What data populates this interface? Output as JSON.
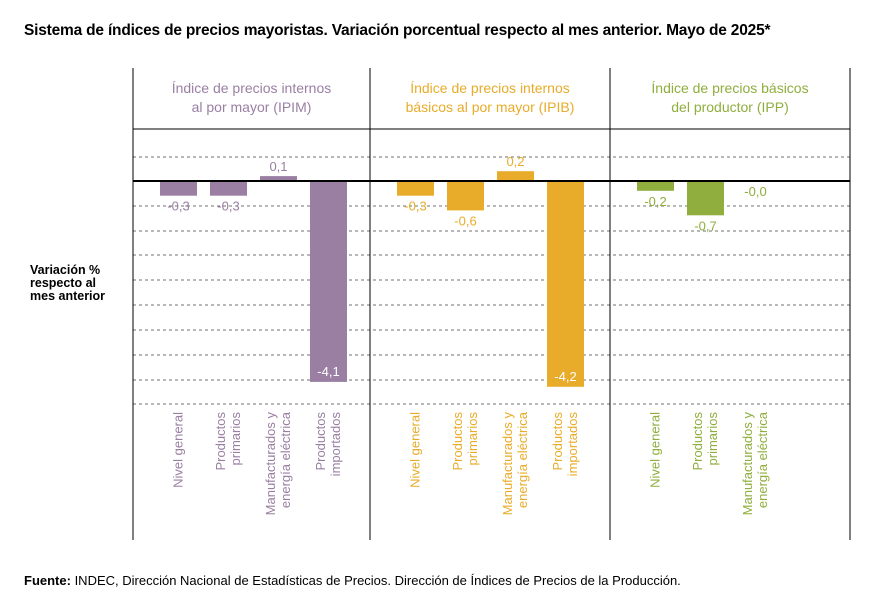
{
  "title": "Sistema de índices de precios mayoristas. Variación porcentual respecto al mes anterior. Mayo de 2025*",
  "ylabel": [
    "Variación %",
    "respecto al",
    "mes anterior"
  ],
  "source": {
    "label": "Fuente:",
    "text": " INDEC, Dirección Nacional de Estadísticas de Precios. Dirección de Índices de Precios de la Producción."
  },
  "chart_data": {
    "type": "bar",
    "ylim": [
      -4.4,
      0.9
    ],
    "grid": true,
    "panels": [
      {
        "title": [
          "Índice de precios internos",
          "al por mayor (IPIM)"
        ],
        "color": "#9a7fa3",
        "categories": [
          [
            "Nivel general"
          ],
          [
            "Productos",
            "primarios"
          ],
          [
            "Manufacturados y",
            "energía eléctrica"
          ],
          [
            "Productos",
            "importados"
          ]
        ],
        "values": [
          -0.3,
          -0.3,
          0.1,
          -4.1
        ],
        "labels": [
          "-0,3",
          "-0,3",
          "0,1",
          "-4,1"
        ]
      },
      {
        "title": [
          "Índice de precios internos",
          "básicos al por mayor (IPIB)"
        ],
        "color": "#e9ac2a",
        "categories": [
          [
            "Nivel general"
          ],
          [
            "Productos",
            "primarios"
          ],
          [
            "Manufacturados y",
            "energía eléctrica"
          ],
          [
            "Productos",
            "importados"
          ]
        ],
        "values": [
          -0.3,
          -0.6,
          0.2,
          -4.2
        ],
        "labels": [
          "-0,3",
          "-0,6",
          "0,2",
          "-4,2"
        ]
      },
      {
        "title": [
          "Índice de precios básicos",
          "del productor (IPP)"
        ],
        "color": "#8fae3e",
        "categories": [
          [
            "Nivel general"
          ],
          [
            "Productos",
            "primarios"
          ],
          [
            "Manufacturados y",
            "energía eléctrica"
          ]
        ],
        "values": [
          -0.2,
          -0.7,
          -0.0
        ],
        "labels": [
          "-0,2",
          "-0,7",
          "-0,0"
        ]
      }
    ]
  }
}
